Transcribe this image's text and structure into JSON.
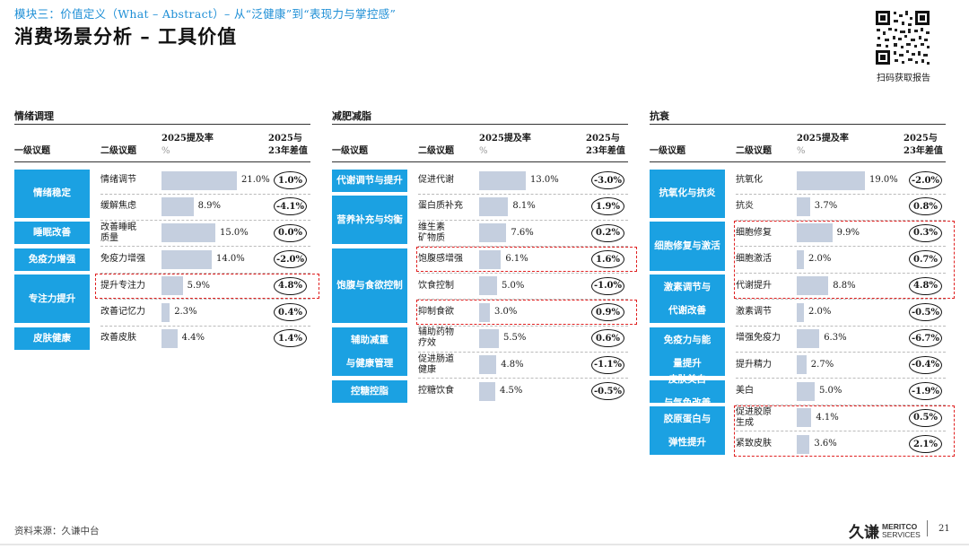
{
  "header": {
    "module_line": "模块三：价值定义（What – Abstract）– 从“泛健康”到“表现力与掌控感”",
    "page_title": "消费场景分析 – 工具价值",
    "qr_label": "扫码获取报告"
  },
  "columns_header": {
    "level1": "一级议题",
    "level2": "二级议题",
    "rate": "2025提及率",
    "rate_unit": "%",
    "diff_line1": "2025与",
    "diff_line2": "23年差值"
  },
  "chart_data": [
    {
      "type": "bar",
      "title": "情绪调理",
      "categories": [
        "情绪调节",
        "缓解焦虑",
        "改善睡眠质量",
        "免疫力增强",
        "提升专注力",
        "改善记忆力",
        "改善皮肤"
      ],
      "values": [
        21.0,
        8.9,
        15.0,
        14.0,
        5.9,
        2.3,
        4.4
      ],
      "diff": [
        "1.0%",
        "-4.1%",
        "0.0%",
        "-2.0%",
        "4.8%",
        "0.4%",
        "1.4%"
      ],
      "groups": [
        "情绪稳定",
        "睡眠改善",
        "免疫力增强",
        "专注力提升",
        "皮肤健康"
      ],
      "xlim": [
        0,
        25
      ]
    },
    {
      "type": "bar",
      "title": "减肥减脂",
      "categories": [
        "促进代谢",
        "蛋白质补充",
        "维生素矿物质",
        "饱腹感增强",
        "饮食控制",
        "抑制食欲",
        "辅助药物疗效",
        "促进肠道健康",
        "控糖饮食"
      ],
      "values": [
        13.0,
        8.1,
        7.6,
        6.1,
        5.0,
        3.0,
        5.5,
        4.8,
        4.5
      ],
      "diff": [
        "-3.0%",
        "1.9%",
        "0.2%",
        "1.6%",
        "-1.0%",
        "0.9%",
        "0.6%",
        "-1.1%",
        "-0.5%"
      ],
      "groups": [
        "代谢调节与提升",
        "营养补充与均衡",
        "饱腹与食欲控制",
        "辅助减重与健康管理",
        "控糖控脂"
      ],
      "xlim": [
        0,
        25
      ]
    },
    {
      "type": "bar",
      "title": "抗衰",
      "categories": [
        "抗氧化",
        "抗炎",
        "细胞修复",
        "细胞激活",
        "代谢提升",
        "激素调节",
        "增强免疫力",
        "提升精力",
        "美白",
        "促进胶原生成",
        "紧致皮肤"
      ],
      "values": [
        19.0,
        3.7,
        9.9,
        2.0,
        8.8,
        2.0,
        6.3,
        2.7,
        5.0,
        4.1,
        3.6
      ],
      "diff": [
        "-2.0%",
        "0.8%",
        "0.3%",
        "0.7%",
        "4.8%",
        "-0.5%",
        "-6.7%",
        "-0.4%",
        "-1.9%",
        "0.5%",
        "2.1%"
      ],
      "groups": [
        "抗氧化与抗炎",
        "细胞修复与激活",
        "激素调节与代谢改善",
        "免疫力与能量提升",
        "皮肤美白与气色改善",
        "胶原蛋白与弹性提升"
      ],
      "xlim": [
        0,
        25
      ]
    }
  ],
  "footer": {
    "source": "资料来源：久谦中台",
    "logo_cn": "久谦",
    "logo_en1": "MERITCO",
    "logo_en2": "SERVICES",
    "page_number": "21"
  },
  "colors": {
    "accent": "#1ba1e2",
    "bar": "#c5cfdf",
    "highlight": "#e02020",
    "module": "#1f8fd6"
  }
}
